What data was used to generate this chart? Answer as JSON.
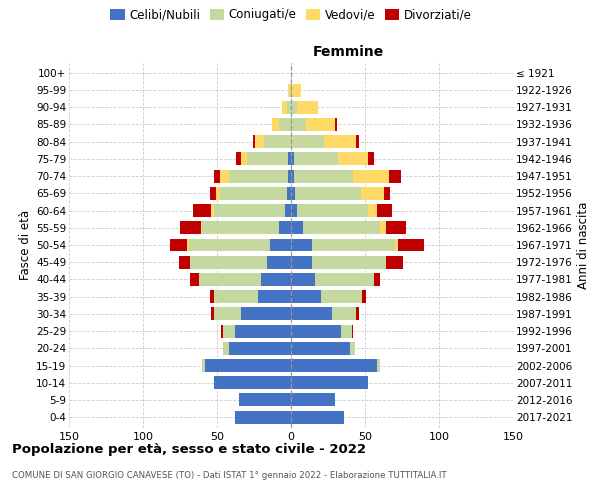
{
  "age_groups": [
    "0-4",
    "5-9",
    "10-14",
    "15-19",
    "20-24",
    "25-29",
    "30-34",
    "35-39",
    "40-44",
    "45-49",
    "50-54",
    "55-59",
    "60-64",
    "65-69",
    "70-74",
    "75-79",
    "80-84",
    "85-89",
    "90-94",
    "95-99",
    "100+"
  ],
  "birth_years": [
    "2017-2021",
    "2012-2016",
    "2007-2011",
    "2002-2006",
    "1997-2001",
    "1992-1996",
    "1987-1991",
    "1982-1986",
    "1977-1981",
    "1972-1976",
    "1967-1971",
    "1962-1966",
    "1957-1961",
    "1952-1956",
    "1947-1951",
    "1942-1946",
    "1937-1941",
    "1932-1936",
    "1927-1931",
    "1922-1926",
    "≤ 1921"
  ],
  "males": {
    "celibi": [
      38,
      35,
      52,
      58,
      42,
      38,
      34,
      22,
      20,
      16,
      14,
      8,
      4,
      3,
      2,
      2,
      0,
      0,
      0,
      0,
      0
    ],
    "coniugati": [
      0,
      0,
      0,
      2,
      4,
      8,
      18,
      30,
      42,
      52,
      55,
      52,
      48,
      45,
      40,
      28,
      18,
      8,
      3,
      1,
      0
    ],
    "vedovi": [
      0,
      0,
      0,
      0,
      0,
      0,
      0,
      0,
      0,
      0,
      1,
      1,
      2,
      3,
      6,
      4,
      6,
      5,
      3,
      1,
      0
    ],
    "divorziati": [
      0,
      0,
      0,
      0,
      0,
      1,
      2,
      3,
      6,
      8,
      12,
      14,
      12,
      4,
      4,
      3,
      2,
      0,
      0,
      0,
      0
    ]
  },
  "females": {
    "nubili": [
      36,
      30,
      52,
      58,
      40,
      34,
      28,
      20,
      16,
      14,
      14,
      8,
      4,
      3,
      2,
      2,
      0,
      0,
      0,
      0,
      0
    ],
    "coniugate": [
      0,
      0,
      0,
      2,
      3,
      7,
      16,
      28,
      40,
      50,
      56,
      52,
      48,
      44,
      40,
      30,
      22,
      10,
      4,
      1,
      0
    ],
    "vedove": [
      0,
      0,
      0,
      0,
      0,
      0,
      0,
      0,
      0,
      0,
      2,
      4,
      6,
      16,
      24,
      20,
      22,
      20,
      14,
      6,
      0
    ],
    "divorziate": [
      0,
      0,
      0,
      0,
      0,
      1,
      2,
      3,
      4,
      12,
      18,
      14,
      10,
      4,
      8,
      4,
      2,
      1,
      0,
      0,
      0
    ]
  },
  "colors": {
    "celibi": "#4472C4",
    "coniugati": "#C5D8A0",
    "vedovi": "#FFD966",
    "divorziati": "#C00000"
  },
  "xlim": 150,
  "title": "Popolazione per età, sesso e stato civile - 2022",
  "subtitle": "COMUNE DI SAN GIORGIO CANAVESE (TO) - Dati ISTAT 1° gennaio 2022 - Elaborazione TUTTITALIA.IT",
  "ylabel_left": "Fasce di età",
  "ylabel_right": "Anni di nascita",
  "xlabel_right": "Femmine",
  "bg_color": "#ffffff",
  "grid_color": "#cccccc"
}
